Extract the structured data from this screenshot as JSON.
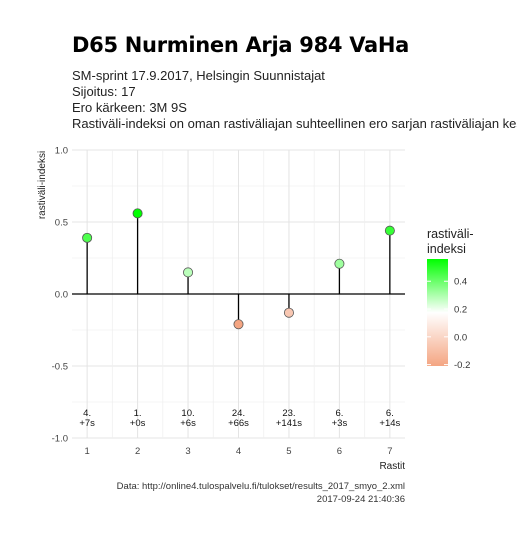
{
  "header": {
    "title": "D65 Nurminen Arja 984 VaHa",
    "lines": [
      "SM-sprint 17.9.2017, Helsingin Suunnistajat",
      "Sijoitus: 17",
      "Ero kärkeen: 3M 9S",
      "Rastiväli-indeksi on oman rastiväliajan suhteellinen ero sarjan rastiväliajan kes"
    ]
  },
  "footer": {
    "source": "Data: http://online4.tulospalvelu.fi/tulokset/results_2017_smyo_2.xml",
    "timestamp": "2017-09-24 21:40:36"
  },
  "chart_data": {
    "type": "lollipop",
    "xlabel": "Rastit",
    "ylabel": "rastiväli-indeksi",
    "xlim": [
      0.7,
      7.3
    ],
    "ylim": [
      -1.0,
      1.0
    ],
    "x_ticks": [
      "1",
      "2",
      "3",
      "4",
      "5",
      "6",
      "7"
    ],
    "y_ticks": [
      "-1.0",
      "-0.5",
      "0.0",
      "0.5",
      "1.0"
    ],
    "grid": true,
    "x": [
      1,
      2,
      3,
      4,
      5,
      6,
      7
    ],
    "values": [
      0.39,
      0.56,
      0.15,
      -0.21,
      -0.13,
      0.21,
      0.44
    ],
    "rank_labels": [
      "4.",
      "1.",
      "10.",
      "24.",
      "23.",
      "6.",
      "6."
    ],
    "diff_labels": [
      "+7s",
      "+0s",
      "+6s",
      "+66s",
      "+141s",
      "+3s",
      "+14s"
    ],
    "legend": {
      "title": [
        "rastiväli-",
        "indeksi"
      ],
      "position": "right",
      "ticks": [
        "0.4",
        "0.2",
        "0.0",
        "-0.2"
      ],
      "range": [
        -0.21,
        0.56
      ],
      "colors": {
        "high": "#00ff00",
        "mid": "#ffffff",
        "low": "#f4a582"
      }
    }
  }
}
